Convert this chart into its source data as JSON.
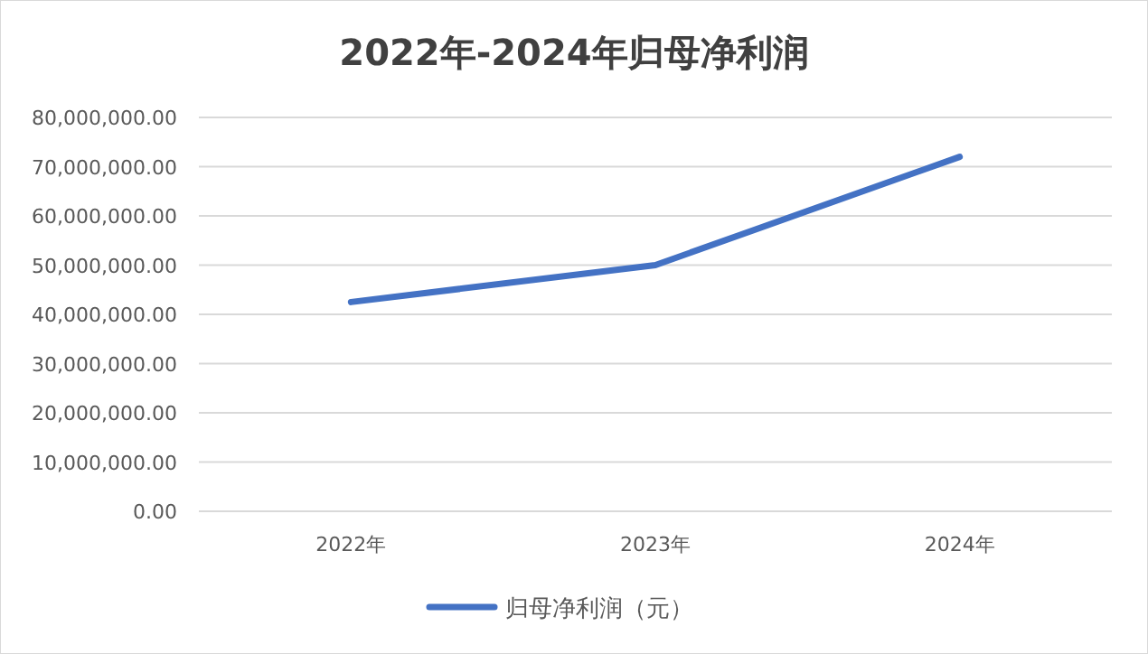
{
  "chart_data": {
    "type": "line",
    "title": "2022年-2024年归母净利润",
    "categories": [
      "2022年",
      "2023年",
      "2024年"
    ],
    "series": [
      {
        "name": "归母净利润（元）",
        "color": "#4472c4",
        "values": [
          42500000,
          50000000,
          72000000
        ]
      }
    ],
    "ylim": [
      0,
      80000000
    ],
    "yticks": [
      {
        "value": 0,
        "label": "0.00"
      },
      {
        "value": 10000000,
        "label": "10,000,000.00"
      },
      {
        "value": 20000000,
        "label": "20,000,000.00"
      },
      {
        "value": 30000000,
        "label": "30,000,000.00"
      },
      {
        "value": 40000000,
        "label": "40,000,000.00"
      },
      {
        "value": 50000000,
        "label": "50,000,000.00"
      },
      {
        "value": 60000000,
        "label": "60,000,000.00"
      },
      {
        "value": 70000000,
        "label": "70,000,000.00"
      },
      {
        "value": 80000000,
        "label": "80,000,000.00"
      }
    ],
    "grid": "y",
    "legend": "bottom",
    "marker": "none",
    "line_style": "solid"
  }
}
